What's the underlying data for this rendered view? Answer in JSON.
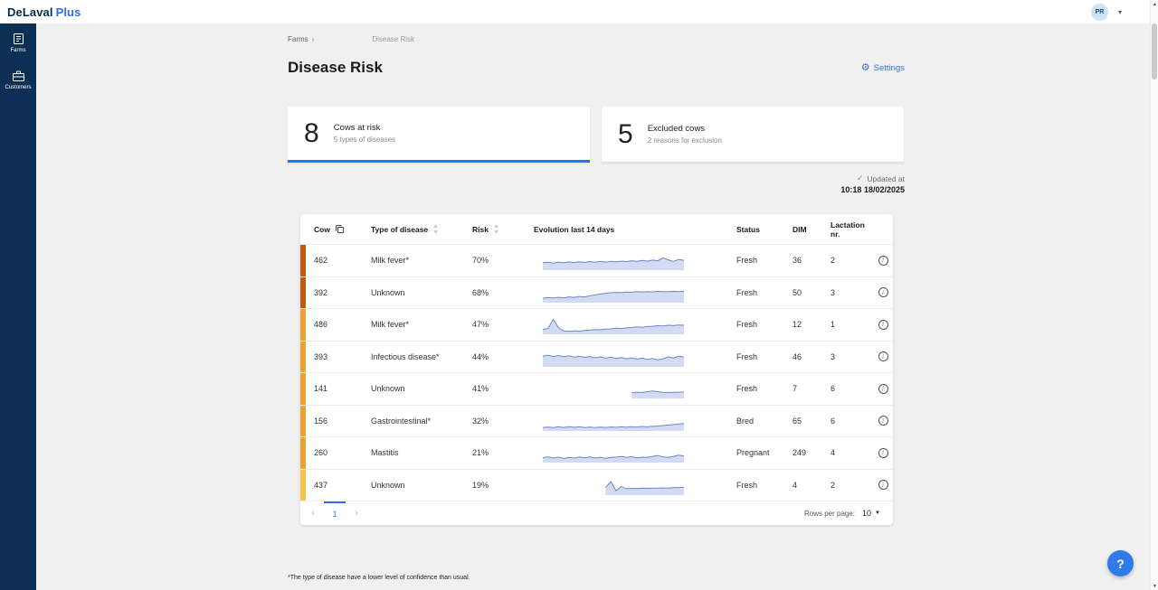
{
  "topbar": {
    "logo_primary": "DeLaval",
    "logo_accent": "Plus",
    "avatar": "PR"
  },
  "sidebar": {
    "items": [
      {
        "label": "Farms"
      },
      {
        "label": "Customers"
      }
    ]
  },
  "breadcrumb": {
    "root": "Farms",
    "current": "Disease Risk"
  },
  "page": {
    "title": "Disease Risk",
    "settings": "Settings"
  },
  "summary_cards": [
    {
      "count": "8",
      "title": "Cows at risk",
      "subtitle": "5 types of diseases",
      "active": true
    },
    {
      "count": "5",
      "title": "Excluded cows",
      "subtitle": "2 reasons for exclusion",
      "active": false
    }
  ],
  "updated": {
    "label": "Updated at",
    "timestamp": "10:18 18/02/2025"
  },
  "table": {
    "headers": {
      "cow": "Cow",
      "disease": "Type of disease",
      "risk": "Risk",
      "evolution": "Evolution last 14 days",
      "status": "Status",
      "dim": "DIM",
      "lactation": "Lactation nr."
    },
    "rows": [
      {
        "cow": "462",
        "disease": "Milk fever*",
        "risk": "70%",
        "status": "Fresh",
        "dim": "36",
        "lactation": "2",
        "bar_color": "#c2590e",
        "spark": [
          40,
          43,
          38,
          44,
          40,
          45,
          41,
          46,
          42,
          47,
          43,
          48,
          44,
          49,
          45,
          50,
          47,
          52,
          49,
          54,
          50,
          56,
          52,
          70,
          58,
          48,
          60,
          55
        ]
      },
      {
        "cow": "392",
        "disease": "Unknown",
        "risk": "68%",
        "status": "Fresh",
        "dim": "50",
        "lactation": "3",
        "bar_color": "#c2590e",
        "spark": [
          22,
          26,
          23,
          28,
          24,
          30,
          27,
          33,
          30,
          38,
          42,
          48,
          52,
          56,
          58,
          56,
          60,
          58,
          62,
          60,
          63,
          61,
          64,
          62,
          63,
          64,
          63,
          65
        ]
      },
      {
        "cow": "486",
        "disease": "Milk fever*",
        "risk": "47%",
        "status": "Fresh",
        "dim": "12",
        "lactation": "1",
        "bar_color": "#eda233",
        "spark": [
          25,
          30,
          88,
          35,
          15,
          12,
          16,
          14,
          18,
          20,
          24,
          22,
          26,
          28,
          32,
          30,
          34,
          36,
          40,
          38,
          42,
          44,
          48,
          46,
          50,
          48,
          52,
          50
        ]
      },
      {
        "cow": "393",
        "disease": "Infectious disease*",
        "risk": "44%",
        "status": "Fresh",
        "dim": "46",
        "lactation": "3",
        "bar_color": "#eda233",
        "spark": [
          60,
          66,
          58,
          64,
          56,
          62,
          54,
          60,
          52,
          58,
          50,
          56,
          48,
          54,
          46,
          52,
          44,
          50,
          42,
          48,
          40,
          46,
          38,
          44,
          56,
          48,
          60,
          54
        ]
      },
      {
        "cow": "141",
        "disease": "Unknown",
        "risk": "41%",
        "status": "Fresh",
        "dim": "7",
        "lactation": "6",
        "bar_color": "#eda233",
        "spark": [
          null,
          null,
          null,
          null,
          null,
          null,
          null,
          null,
          null,
          null,
          null,
          null,
          null,
          null,
          null,
          null,
          null,
          30,
          33,
          31,
          36,
          40,
          36,
          32,
          31,
          32,
          33,
          34
        ]
      },
      {
        "cow": "156",
        "disease": "Gastrointestinal*",
        "risk": "32%",
        "status": "Bred",
        "dim": "65",
        "lactation": "6",
        "bar_color": "#eda233",
        "spark": [
          16,
          19,
          15,
          20,
          16,
          21,
          17,
          20,
          16,
          19,
          15,
          18,
          16,
          19,
          17,
          20,
          18,
          21,
          19,
          22,
          20,
          23,
          25,
          28,
          31,
          34,
          37,
          40
        ]
      },
      {
        "cow": "260",
        "disease": "Mastitis",
        "risk": "21%",
        "status": "Pregnant",
        "dim": "249",
        "lactation": "4",
        "bar_color": "#eda233",
        "spark": [
          25,
          30,
          22,
          28,
          20,
          26,
          22,
          29,
          24,
          30,
          22,
          27,
          21,
          26,
          28,
          33,
          26,
          31,
          23,
          28,
          26,
          33,
          38,
          30,
          26,
          33,
          40,
          35
        ]
      },
      {
        "cow": "437",
        "disease": "Unknown",
        "risk": "19%",
        "status": "Fresh",
        "dim": "4",
        "lactation": "2",
        "bar_color": "#f4c64d",
        "spark": [
          null,
          null,
          null,
          null,
          null,
          null,
          null,
          null,
          null,
          null,
          null,
          null,
          40,
          78,
          22,
          48,
          34,
          36,
          35,
          37,
          36,
          38,
          37,
          39,
          38,
          40,
          41,
          42
        ]
      }
    ]
  },
  "pagination": {
    "prev": "‹",
    "page": "1",
    "next": "›",
    "rows_per_page_label": "Rows per page:",
    "rows_per_page": "10"
  },
  "footnote": "*The type of disease have a lower level of confidence than usual.",
  "help": {
    "label": "?"
  },
  "colors": {
    "accent_blue": "#2f6fed",
    "sidebar_navy": "#0d2f54",
    "spark_line": "#6f87c8",
    "spark_fill": "#d2dbf1",
    "risk_high": "#c2590e",
    "risk_medium": "#eda233",
    "risk_low": "#f4c64d"
  }
}
